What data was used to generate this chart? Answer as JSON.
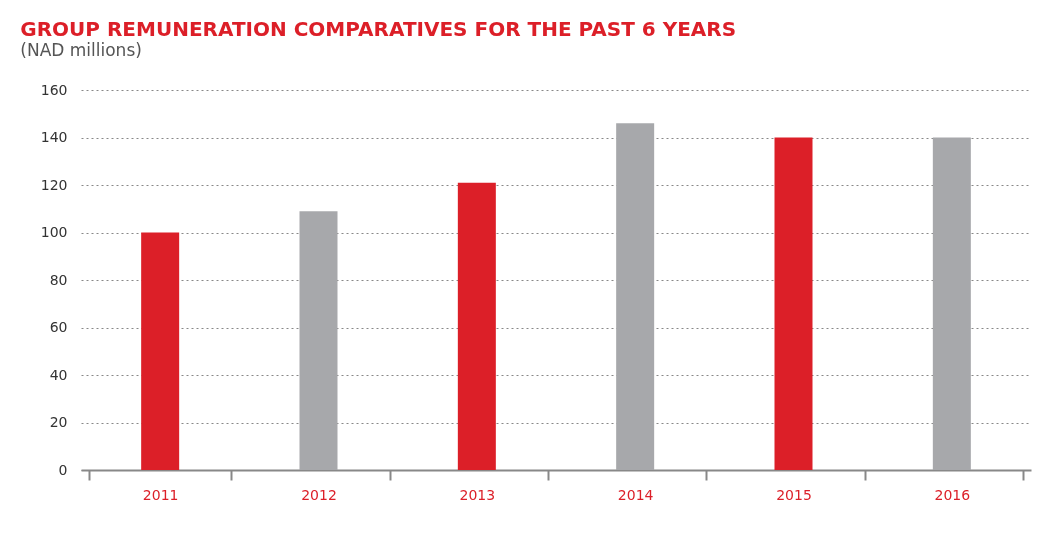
{
  "chart_data": {
    "type": "bar",
    "title": "GROUP REMUNERATION COMPARATIVES FOR THE PAST 6 YEARS",
    "subtitle": "(NAD millions)",
    "categories": [
      "2011",
      "2012",
      "2013",
      "2014",
      "2015",
      "2016"
    ],
    "values": [
      100,
      109,
      121,
      146,
      140,
      140
    ],
    "colors": [
      "#dc1f28",
      "#a7a8ab",
      "#dc1f28",
      "#a7a8ab",
      "#dc1f28",
      "#a7a8ab"
    ],
    "ylim": [
      0,
      160
    ],
    "yticks": [
      0,
      20,
      40,
      60,
      80,
      100,
      120,
      140,
      160
    ],
    "grid": "y"
  }
}
